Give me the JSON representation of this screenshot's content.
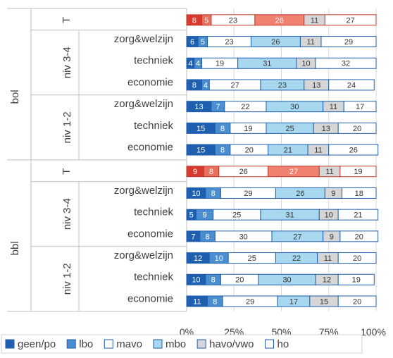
{
  "chart_data": {
    "type": "bar",
    "orientation": "horizontal",
    "stacked": true,
    "xlim": [
      0,
      100
    ],
    "x_ticks": [
      "0%",
      "25%",
      "50%",
      "75%",
      "100%"
    ],
    "grid": true,
    "legend_position": "bottom",
    "groups": [
      {
        "label": "bol",
        "rows": [
          {
            "level": "",
            "category": "T",
            "total": true,
            "values": [
              8,
              5,
              23,
              26,
              11,
              27
            ]
          },
          {
            "level": "niv 3-4",
            "category": "zorg&welzijn",
            "values": [
              6,
              5,
              23,
              26,
              11,
              29
            ]
          },
          {
            "level": "niv 3-4",
            "category": "techniek",
            "values": [
              4,
              4,
              19,
              31,
              10,
              32
            ]
          },
          {
            "level": "niv 3-4",
            "category": "economie",
            "values": [
              8,
              4,
              27,
              23,
              13,
              24
            ]
          },
          {
            "level": "niv 1-2",
            "category": "zorg&welzijn",
            "values": [
              13,
              7,
              22,
              30,
              11,
              17
            ]
          },
          {
            "level": "niv 1-2",
            "category": "techniek",
            "values": [
              15,
              8,
              19,
              25,
              13,
              20
            ]
          },
          {
            "level": "niv 1-2",
            "category": "economie",
            "values": [
              15,
              8,
              20,
              21,
              11,
              26
            ]
          }
        ]
      },
      {
        "label": "bbl",
        "rows": [
          {
            "level": "",
            "category": "T",
            "total": true,
            "values": [
              9,
              8,
              26,
              27,
              11,
              19
            ]
          },
          {
            "level": "niv 3-4",
            "category": "zorg&welzijn",
            "values": [
              10,
              8,
              29,
              26,
              9,
              18
            ]
          },
          {
            "level": "niv 3-4",
            "category": "techniek",
            "values": [
              5,
              9,
              25,
              31,
              10,
              21
            ]
          },
          {
            "level": "niv 3-4",
            "category": "economie",
            "values": [
              7,
              8,
              30,
              27,
              9,
              20
            ]
          },
          {
            "level": "niv 1-2",
            "category": "zorg&welzijn",
            "values": [
              12,
              10,
              25,
              22,
              11,
              20
            ]
          },
          {
            "level": "niv 1-2",
            "category": "techniek",
            "values": [
              10,
              8,
              20,
              30,
              12,
              19
            ]
          },
          {
            "level": "niv 1-2",
            "category": "economie",
            "values": [
              11,
              8,
              29,
              17,
              15,
              20
            ]
          }
        ]
      }
    ],
    "series": [
      {
        "name": "geen/po",
        "color": "#1f5fb0",
        "total_color": "#d93a2e"
      },
      {
        "name": "lbo",
        "color": "#4a8ed0",
        "total_color": "#e8705f"
      },
      {
        "name": "mavo",
        "color": "#ffffff",
        "total_color": "#ffffff"
      },
      {
        "name": "mbo",
        "color": "#a8d8f0",
        "total_color": "#f08070"
      },
      {
        "name": "havo/vwo",
        "color": "#d6d6d6",
        "total_color": "#d6d6d6"
      },
      {
        "name": "ho",
        "color": "#ffffff",
        "total_color": "#ffffff"
      }
    ]
  }
}
